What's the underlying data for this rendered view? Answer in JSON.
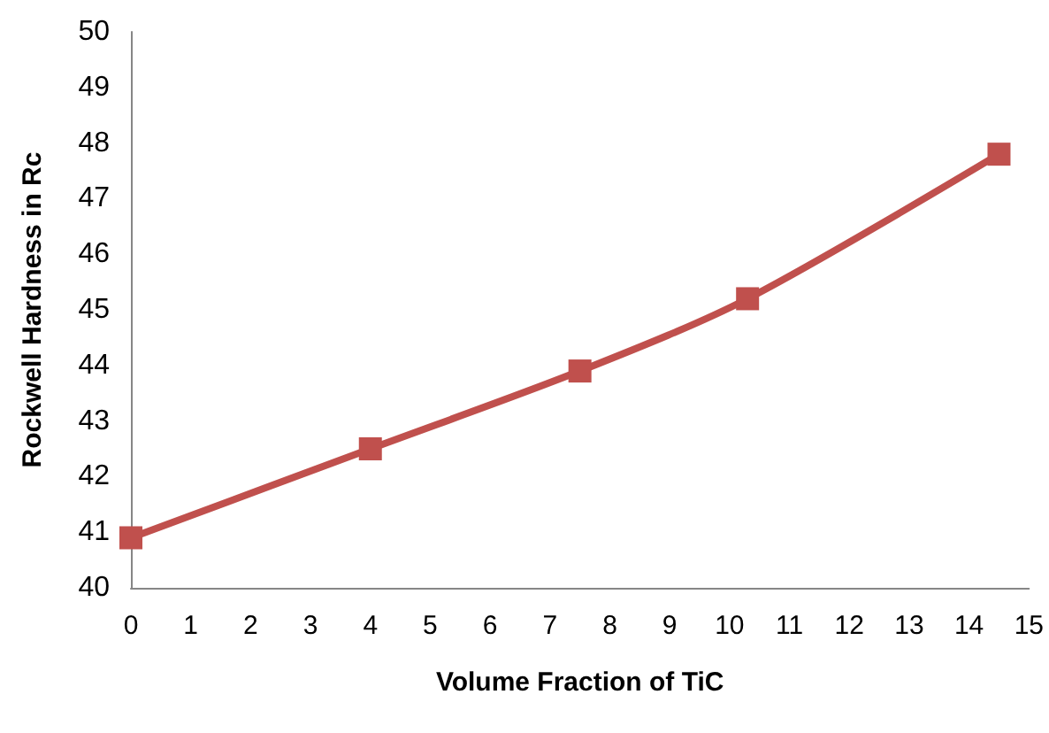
{
  "chart_data": {
    "type": "line",
    "xlabel": "Volume Fraction of TiC",
    "ylabel": "Rockwell Hardness in Rc",
    "x": [
      0,
      4,
      7.5,
      10.3,
      14.5
    ],
    "series": [
      {
        "color": "#c0504d",
        "values": [
          40.9,
          42.5,
          43.9,
          45.2,
          47.8
        ]
      }
    ],
    "xlim": [
      0,
      15
    ],
    "xticks": [
      0,
      1,
      2,
      3,
      4,
      5,
      6,
      7,
      8,
      9,
      10,
      11,
      12,
      13,
      14,
      15
    ],
    "ylim": [
      40,
      50
    ],
    "yticks": [
      40,
      41,
      42,
      43,
      44,
      45,
      46,
      47,
      48,
      49,
      50
    ],
    "grid": false,
    "marker": "square",
    "line_style": "solid"
  }
}
